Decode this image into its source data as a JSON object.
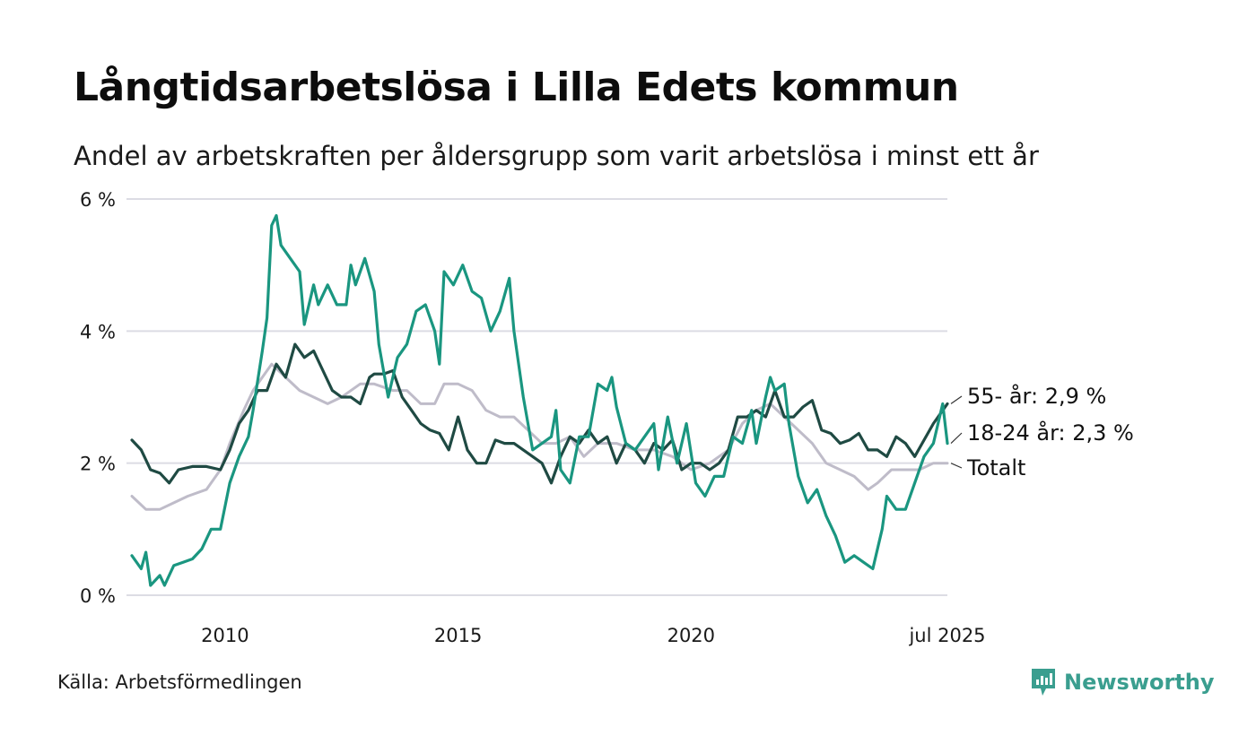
{
  "title": "Långtidsarbetslösa i Lilla Edets kommun",
  "subtitle": "Andel av arbetskraften per åldersgrupp som varit arbetslösa i minst ett år",
  "source": "Källa: Arbetsförmedlingen",
  "brand": "Newsworthy",
  "colors": {
    "series_55": "#1f4a43",
    "series_18_24": "#1a9680",
    "series_total": "#bfbcc9",
    "grid": "#dcdce4",
    "brand": "#3a9e8f"
  },
  "chart_data": {
    "type": "line",
    "title": "Långtidsarbetslösa i Lilla Edets kommun",
    "subtitle": "Andel av arbetskraften per åldersgrupp som varit arbetslösa i minst ett år",
    "xlabel": "",
    "ylabel": "",
    "x_ticks": [
      {
        "x": 2010.0,
        "label": "2010"
      },
      {
        "x": 2015.0,
        "label": "2015"
      },
      {
        "x": 2020.0,
        "label": "2020"
      },
      {
        "x": 2025.5,
        "label": "jul 2025"
      }
    ],
    "y_ticks": [
      {
        "y": 0,
        "label": "0 %"
      },
      {
        "y": 2,
        "label": "2 %"
      },
      {
        "y": 4,
        "label": "4 %"
      },
      {
        "y": 6,
        "label": "6 %"
      }
    ],
    "xlim": [
      2008.0,
      2025.5
    ],
    "ylim": [
      0,
      6
    ],
    "grid": true,
    "series": [
      {
        "key": "total",
        "name": "Totalt",
        "end_label": "Totalt",
        "color": "#bfbcc9",
        "points": [
          [
            2008.0,
            1.5
          ],
          [
            2008.3,
            1.3
          ],
          [
            2008.6,
            1.3
          ],
          [
            2008.9,
            1.4
          ],
          [
            2009.2,
            1.5
          ],
          [
            2009.6,
            1.6
          ],
          [
            2009.9,
            1.9
          ],
          [
            2010.1,
            2.3
          ],
          [
            2010.4,
            2.8
          ],
          [
            2010.6,
            3.1
          ],
          [
            2010.8,
            3.3
          ],
          [
            2011.0,
            3.5
          ],
          [
            2011.3,
            3.3
          ],
          [
            2011.6,
            3.1
          ],
          [
            2011.9,
            3.0
          ],
          [
            2012.2,
            2.9
          ],
          [
            2012.5,
            3.0
          ],
          [
            2012.9,
            3.2
          ],
          [
            2013.2,
            3.2
          ],
          [
            2013.6,
            3.1
          ],
          [
            2013.9,
            3.1
          ],
          [
            2014.2,
            2.9
          ],
          [
            2014.5,
            2.9
          ],
          [
            2014.7,
            3.2
          ],
          [
            2015.0,
            3.2
          ],
          [
            2015.3,
            3.1
          ],
          [
            2015.6,
            2.8
          ],
          [
            2015.9,
            2.7
          ],
          [
            2016.2,
            2.7
          ],
          [
            2016.5,
            2.5
          ],
          [
            2016.8,
            2.3
          ],
          [
            2017.1,
            2.3
          ],
          [
            2017.4,
            2.4
          ],
          [
            2017.7,
            2.1
          ],
          [
            2018.0,
            2.3
          ],
          [
            2018.4,
            2.3
          ],
          [
            2018.8,
            2.2
          ],
          [
            2019.2,
            2.2
          ],
          [
            2019.6,
            2.1
          ],
          [
            2020.0,
            1.9
          ],
          [
            2020.4,
            2.0
          ],
          [
            2020.8,
            2.2
          ],
          [
            2021.1,
            2.6
          ],
          [
            2021.4,
            2.8
          ],
          [
            2021.7,
            2.9
          ],
          [
            2022.0,
            2.7
          ],
          [
            2022.3,
            2.5
          ],
          [
            2022.6,
            2.3
          ],
          [
            2022.9,
            2.0
          ],
          [
            2023.2,
            1.9
          ],
          [
            2023.5,
            1.8
          ],
          [
            2023.8,
            1.6
          ],
          [
            2024.0,
            1.7
          ],
          [
            2024.3,
            1.9
          ],
          [
            2024.6,
            1.9
          ],
          [
            2024.9,
            1.9
          ],
          [
            2025.2,
            2.0
          ],
          [
            2025.5,
            2.0
          ]
        ]
      },
      {
        "key": "s55",
        "name": "55- år",
        "end_label": "55- år: 2,9 %",
        "color": "#1f4a43",
        "points": [
          [
            2008.0,
            2.35
          ],
          [
            2008.2,
            2.2
          ],
          [
            2008.4,
            1.9
          ],
          [
            2008.6,
            1.85
          ],
          [
            2008.8,
            1.7
          ],
          [
            2009.0,
            1.9
          ],
          [
            2009.3,
            1.95
          ],
          [
            2009.6,
            1.95
          ],
          [
            2009.9,
            1.9
          ],
          [
            2010.1,
            2.2
          ],
          [
            2010.3,
            2.6
          ],
          [
            2010.5,
            2.8
          ],
          [
            2010.7,
            3.1
          ],
          [
            2010.9,
            3.1
          ],
          [
            2011.1,
            3.5
          ],
          [
            2011.3,
            3.3
          ],
          [
            2011.5,
            3.8
          ],
          [
            2011.7,
            3.6
          ],
          [
            2011.9,
            3.7
          ],
          [
            2012.1,
            3.4
          ],
          [
            2012.3,
            3.1
          ],
          [
            2012.5,
            3.0
          ],
          [
            2012.7,
            3.0
          ],
          [
            2012.9,
            2.9
          ],
          [
            2013.1,
            3.3
          ],
          [
            2013.2,
            3.35
          ],
          [
            2013.4,
            3.35
          ],
          [
            2013.6,
            3.4
          ],
          [
            2013.8,
            3.0
          ],
          [
            2014.0,
            2.8
          ],
          [
            2014.2,
            2.6
          ],
          [
            2014.4,
            2.5
          ],
          [
            2014.6,
            2.45
          ],
          [
            2014.8,
            2.2
          ],
          [
            2015.0,
            2.7
          ],
          [
            2015.2,
            2.2
          ],
          [
            2015.4,
            2.0
          ],
          [
            2015.6,
            2.0
          ],
          [
            2015.8,
            2.35
          ],
          [
            2016.0,
            2.3
          ],
          [
            2016.2,
            2.3
          ],
          [
            2016.4,
            2.2
          ],
          [
            2016.6,
            2.1
          ],
          [
            2016.8,
            2.0
          ],
          [
            2017.0,
            1.7
          ],
          [
            2017.2,
            2.1
          ],
          [
            2017.4,
            2.4
          ],
          [
            2017.6,
            2.3
          ],
          [
            2017.8,
            2.5
          ],
          [
            2018.0,
            2.3
          ],
          [
            2018.2,
            2.4
          ],
          [
            2018.4,
            2.0
          ],
          [
            2018.6,
            2.3
          ],
          [
            2018.8,
            2.2
          ],
          [
            2019.0,
            2.0
          ],
          [
            2019.2,
            2.3
          ],
          [
            2019.4,
            2.2
          ],
          [
            2019.6,
            2.35
          ],
          [
            2019.8,
            1.9
          ],
          [
            2020.0,
            2.0
          ],
          [
            2020.2,
            2.0
          ],
          [
            2020.4,
            1.9
          ],
          [
            2020.6,
            2.0
          ],
          [
            2020.8,
            2.2
          ],
          [
            2021.0,
            2.7
          ],
          [
            2021.2,
            2.7
          ],
          [
            2021.4,
            2.8
          ],
          [
            2021.6,
            2.7
          ],
          [
            2021.8,
            3.1
          ],
          [
            2022.0,
            2.7
          ],
          [
            2022.2,
            2.7
          ],
          [
            2022.4,
            2.85
          ],
          [
            2022.6,
            2.95
          ],
          [
            2022.8,
            2.5
          ],
          [
            2023.0,
            2.45
          ],
          [
            2023.2,
            2.3
          ],
          [
            2023.4,
            2.35
          ],
          [
            2023.6,
            2.45
          ],
          [
            2023.8,
            2.2
          ],
          [
            2024.0,
            2.2
          ],
          [
            2024.2,
            2.1
          ],
          [
            2024.4,
            2.4
          ],
          [
            2024.6,
            2.3
          ],
          [
            2024.8,
            2.1
          ],
          [
            2025.0,
            2.35
          ],
          [
            2025.2,
            2.6
          ],
          [
            2025.5,
            2.9
          ]
        ]
      },
      {
        "key": "s1824",
        "name": "18-24 år",
        "end_label": "18-24 år: 2,3 %",
        "color": "#1a9680",
        "points": [
          [
            2008.0,
            0.6
          ],
          [
            2008.2,
            0.4
          ],
          [
            2008.3,
            0.65
          ],
          [
            2008.4,
            0.15
          ],
          [
            2008.6,
            0.3
          ],
          [
            2008.7,
            0.15
          ],
          [
            2008.9,
            0.45
          ],
          [
            2009.1,
            0.5
          ],
          [
            2009.3,
            0.55
          ],
          [
            2009.5,
            0.7
          ],
          [
            2009.7,
            1.0
          ],
          [
            2009.9,
            1.0
          ],
          [
            2010.1,
            1.7
          ],
          [
            2010.3,
            2.1
          ],
          [
            2010.5,
            2.4
          ],
          [
            2010.6,
            2.8
          ],
          [
            2010.8,
            3.7
          ],
          [
            2010.9,
            4.2
          ],
          [
            2011.0,
            5.6
          ],
          [
            2011.1,
            5.75
          ],
          [
            2011.2,
            5.3
          ],
          [
            2011.4,
            5.1
          ],
          [
            2011.6,
            4.9
          ],
          [
            2011.7,
            4.1
          ],
          [
            2011.9,
            4.7
          ],
          [
            2012.0,
            4.4
          ],
          [
            2012.2,
            4.7
          ],
          [
            2012.4,
            4.4
          ],
          [
            2012.6,
            4.4
          ],
          [
            2012.7,
            5.0
          ],
          [
            2012.8,
            4.7
          ],
          [
            2013.0,
            5.1
          ],
          [
            2013.2,
            4.6
          ],
          [
            2013.3,
            3.8
          ],
          [
            2013.5,
            3.0
          ],
          [
            2013.7,
            3.6
          ],
          [
            2013.9,
            3.8
          ],
          [
            2014.1,
            4.3
          ],
          [
            2014.3,
            4.4
          ],
          [
            2014.5,
            4.0
          ],
          [
            2014.6,
            3.5
          ],
          [
            2014.7,
            4.9
          ],
          [
            2014.9,
            4.7
          ],
          [
            2015.1,
            5.0
          ],
          [
            2015.3,
            4.6
          ],
          [
            2015.5,
            4.5
          ],
          [
            2015.7,
            4.0
          ],
          [
            2015.9,
            4.3
          ],
          [
            2016.1,
            4.8
          ],
          [
            2016.2,
            4.0
          ],
          [
            2016.4,
            3.0
          ],
          [
            2016.6,
            2.2
          ],
          [
            2016.8,
            2.3
          ],
          [
            2017.0,
            2.4
          ],
          [
            2017.1,
            2.8
          ],
          [
            2017.2,
            1.9
          ],
          [
            2017.4,
            1.7
          ],
          [
            2017.6,
            2.4
          ],
          [
            2017.8,
            2.4
          ],
          [
            2018.0,
            3.2
          ],
          [
            2018.2,
            3.1
          ],
          [
            2018.3,
            3.3
          ],
          [
            2018.4,
            2.85
          ],
          [
            2018.6,
            2.3
          ],
          [
            2018.8,
            2.2
          ],
          [
            2019.0,
            2.4
          ],
          [
            2019.2,
            2.6
          ],
          [
            2019.3,
            1.9
          ],
          [
            2019.5,
            2.7
          ],
          [
            2019.7,
            2.0
          ],
          [
            2019.9,
            2.6
          ],
          [
            2020.1,
            1.7
          ],
          [
            2020.3,
            1.5
          ],
          [
            2020.5,
            1.8
          ],
          [
            2020.7,
            1.8
          ],
          [
            2020.9,
            2.4
          ],
          [
            2021.1,
            2.3
          ],
          [
            2021.3,
            2.8
          ],
          [
            2021.4,
            2.3
          ],
          [
            2021.6,
            3.0
          ],
          [
            2021.7,
            3.3
          ],
          [
            2021.8,
            3.1
          ],
          [
            2022.0,
            3.2
          ],
          [
            2022.1,
            2.6
          ],
          [
            2022.3,
            1.8
          ],
          [
            2022.5,
            1.4
          ],
          [
            2022.7,
            1.6
          ],
          [
            2022.9,
            1.2
          ],
          [
            2023.1,
            0.9
          ],
          [
            2023.3,
            0.5
          ],
          [
            2023.5,
            0.6
          ],
          [
            2023.7,
            0.5
          ],
          [
            2023.9,
            0.4
          ],
          [
            2024.1,
            1.0
          ],
          [
            2024.2,
            1.5
          ],
          [
            2024.4,
            1.3
          ],
          [
            2024.6,
            1.3
          ],
          [
            2024.8,
            1.7
          ],
          [
            2025.0,
            2.1
          ],
          [
            2025.2,
            2.3
          ],
          [
            2025.4,
            2.9
          ],
          [
            2025.5,
            2.3
          ]
        ]
      }
    ]
  }
}
